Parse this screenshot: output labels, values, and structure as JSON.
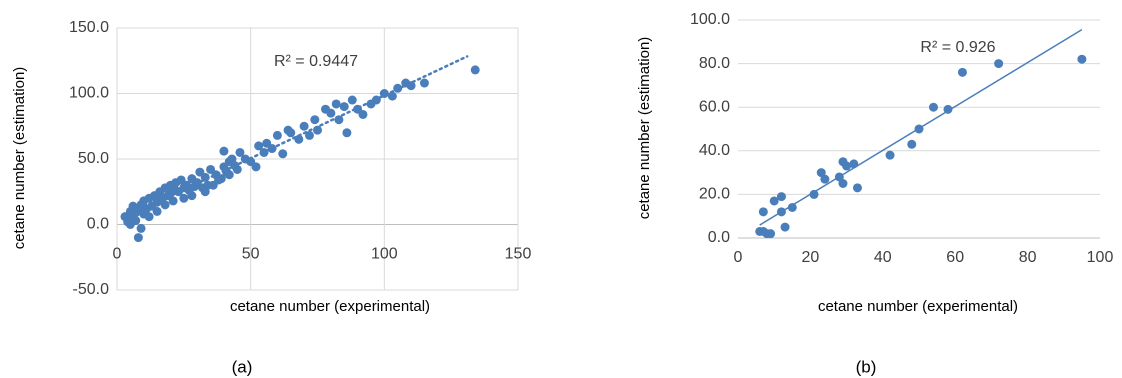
{
  "chart_data": [
    {
      "type": "scatter",
      "caption": "(a)",
      "annotation": "R² = 0.9447",
      "x_label": "cetane number (experimental)",
      "y_label": "cetane number (estimation)",
      "x": [
        3,
        4,
        5,
        5,
        6,
        6,
        7,
        7,
        8,
        8,
        9,
        9,
        10,
        10,
        11,
        12,
        12,
        13,
        14,
        15,
        15,
        16,
        17,
        18,
        18,
        19,
        20,
        20,
        21,
        22,
        22,
        23,
        24,
        25,
        25,
        26,
        27,
        28,
        28,
        29,
        30,
        31,
        32,
        33,
        33,
        34,
        35,
        36,
        37,
        38,
        39,
        40,
        40,
        41,
        42,
        42,
        43,
        44,
        45,
        46,
        48,
        50,
        52,
        53,
        55,
        56,
        58,
        60,
        62,
        64,
        65,
        68,
        70,
        72,
        74,
        75,
        78,
        80,
        82,
        83,
        85,
        86,
        88,
        90,
        92,
        95,
        97,
        100,
        103,
        105,
        108,
        110,
        115,
        134
      ],
      "values": [
        6,
        2,
        0,
        10,
        5,
        14,
        3,
        9,
        -10,
        12,
        -3,
        15,
        8,
        18,
        12,
        6,
        20,
        14,
        22,
        17,
        10,
        25,
        20,
        28,
        15,
        22,
        30,
        24,
        18,
        32,
        26,
        25,
        34,
        20,
        28,
        30,
        26,
        22,
        35,
        29,
        32,
        40,
        28,
        25,
        36,
        30,
        42,
        30,
        38,
        34,
        35,
        56,
        44,
        40,
        38,
        48,
        50,
        45,
        42,
        55,
        50,
        48,
        44,
        60,
        55,
        62,
        58,
        68,
        54,
        72,
        70,
        65,
        75,
        68,
        80,
        72,
        88,
        85,
        92,
        80,
        90,
        70,
        95,
        88,
        84,
        92,
        95,
        100,
        98,
        104,
        108,
        106,
        108,
        118
      ],
      "color": "#4a7ebb",
      "trendline": "dotted",
      "grid": "both",
      "xlim": [
        0,
        150
      ],
      "xticks": [
        0,
        50,
        100,
        150
      ],
      "ylim": [
        -50,
        150
      ],
      "yticks": [
        {
          "value": -50,
          "label": "-50.0"
        },
        {
          "value": 0,
          "label": "0.0"
        },
        {
          "value": 50,
          "label": "50.0"
        },
        {
          "value": 100,
          "label": "100.0"
        },
        {
          "value": 150,
          "label": "150.0"
        }
      ]
    },
    {
      "type": "scatter",
      "caption": "(b)",
      "annotation": "R² = 0.926",
      "x_label": "cetane number (experimental)",
      "y_label": "cetane number (estimation)",
      "x": [
        6,
        7,
        7,
        8,
        9,
        10,
        12,
        12,
        13,
        15,
        21,
        23,
        24,
        28,
        29,
        29,
        30,
        32,
        33,
        42,
        48,
        50,
        54,
        58,
        62,
        72,
        95
      ],
      "values": [
        3,
        12,
        3,
        2,
        2,
        17,
        19,
        12,
        5,
        14,
        20,
        30,
        27,
        28,
        35,
        25,
        33,
        34,
        23,
        38,
        43,
        50,
        60,
        59,
        76,
        80,
        82
      ],
      "color": "#4a7ebb",
      "trendline": "solid",
      "grid": "horizontal",
      "xlim": [
        0,
        100
      ],
      "xticks": [
        0,
        20,
        40,
        60,
        80,
        100
      ],
      "ylim": [
        0,
        100
      ],
      "yticks": [
        {
          "value": 0,
          "label": "0.0"
        },
        {
          "value": 20,
          "label": "20.0"
        },
        {
          "value": 40,
          "label": "40.0"
        },
        {
          "value": 60,
          "label": "60.0"
        },
        {
          "value": 80,
          "label": "80.0"
        },
        {
          "value": 100,
          "label": "100.0"
        }
      ]
    }
  ]
}
